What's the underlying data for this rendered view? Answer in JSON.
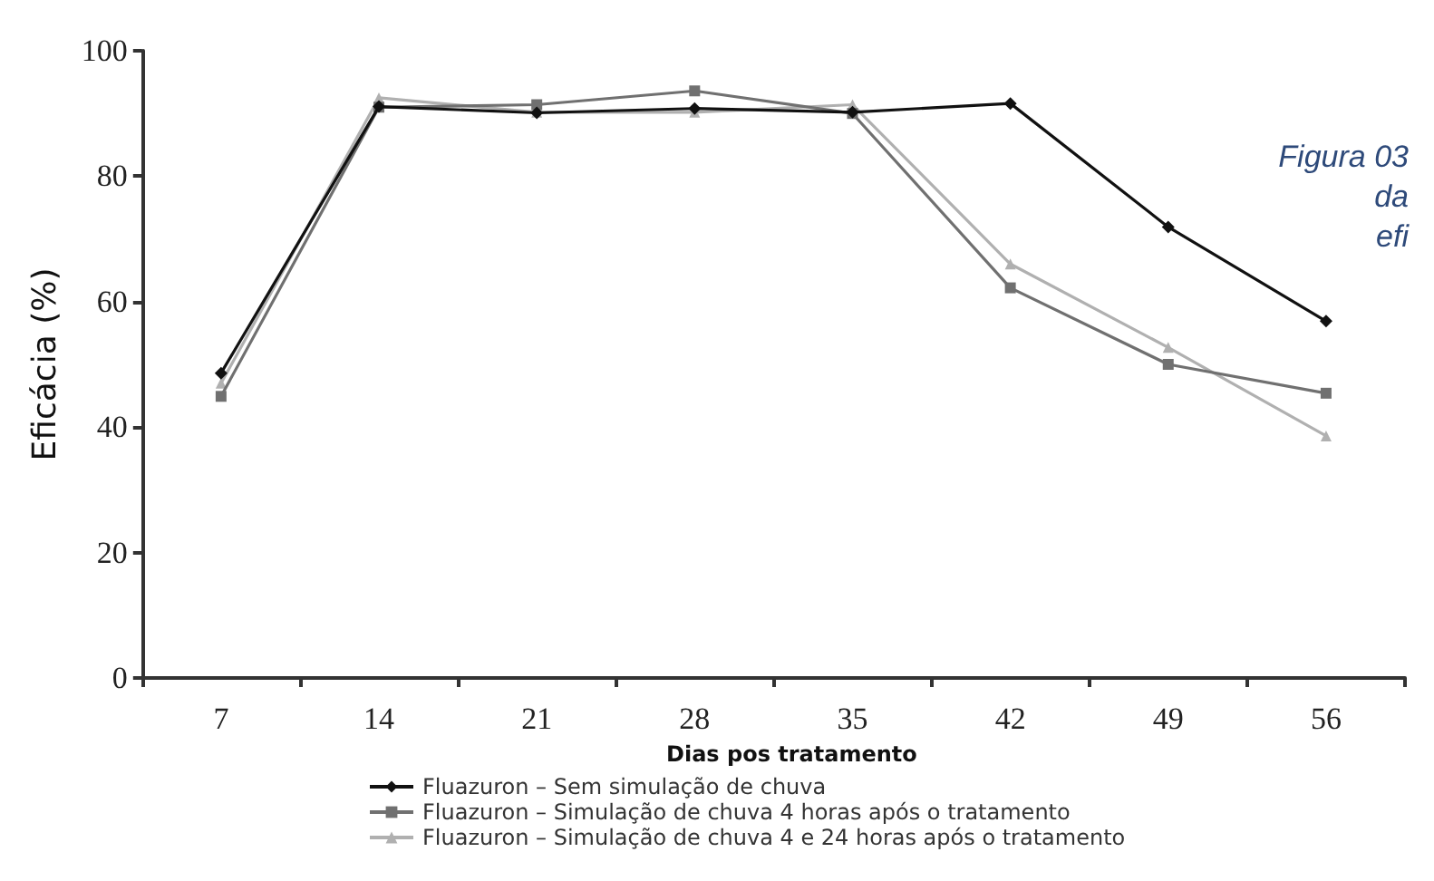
{
  "chart_data": {
    "type": "line",
    "xlabel": "Dias pos tratamento",
    "ylabel": "Eficácia (%)",
    "categories": [
      "7",
      "14",
      "21",
      "28",
      "35",
      "42",
      "49",
      "56"
    ],
    "ylim": [
      0,
      100
    ],
    "yticks": [
      0,
      20,
      40,
      60,
      80,
      100
    ],
    "grid": false,
    "legend": "bottom",
    "series": [
      {
        "name": "Fluazuron – Sem simulação de chuva",
        "color": "#111111",
        "marker": "diamond",
        "values": [
          48.6,
          91.1,
          90.1,
          90.8,
          90.2,
          91.6,
          71.9,
          56.9
        ]
      },
      {
        "name": "Fluazuron – Simulação de chuva 4 horas após o tratamento",
        "color": "#707070",
        "marker": "square",
        "values": [
          44.9,
          91,
          91.4,
          93.6,
          90,
          62.2,
          50,
          45.4
        ]
      },
      {
        "name": "Fluazuron – Simulação de chuva 4 e 24 horas após o tratamento",
        "color": "#b0b0b0",
        "marker": "triangle",
        "values": [
          47,
          92.5,
          90.2,
          90.2,
          91.4,
          66,
          52.7,
          38.6
        ]
      }
    ],
    "annotations": [
      "Figura 03",
      "da",
      "efi"
    ]
  }
}
